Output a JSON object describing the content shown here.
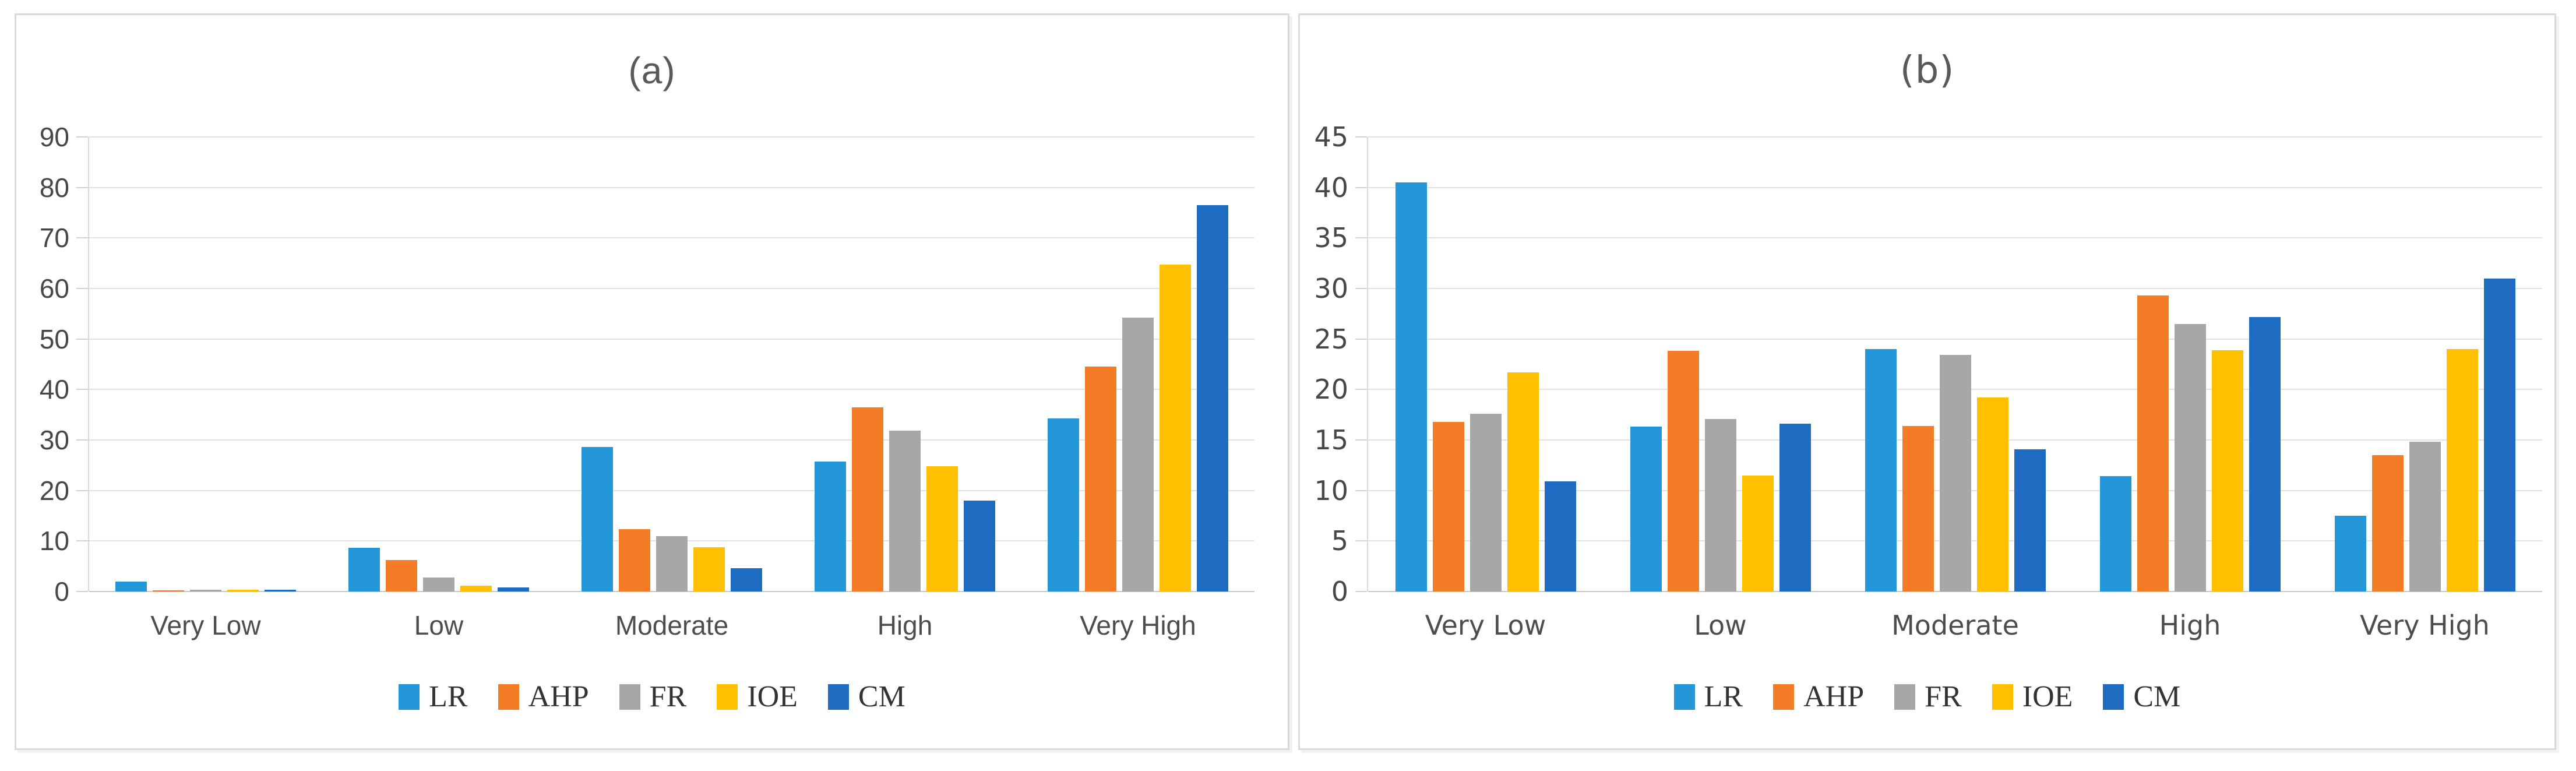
{
  "figure": {
    "panel_a_title": "(a)",
    "panel_b_title": "(b)"
  },
  "legend": {
    "items": [
      {
        "label": "LR",
        "color": "#2397d8"
      },
      {
        "label": "AHP",
        "color": "#f57c26"
      },
      {
        "label": "FR",
        "color": "#a7a7a7"
      },
      {
        "label": "IOE",
        "color": "#ffc000"
      },
      {
        "label": "CM",
        "color": "#1e6cc1"
      }
    ]
  },
  "chart_data": [
    {
      "type": "bar",
      "title": "(a)",
      "categories": [
        "Very Low",
        "Low",
        "Moderate",
        "High",
        "Very High"
      ],
      "series": [
        {
          "name": "LR",
          "color": "#2397d8",
          "values": [
            2.0,
            8.7,
            28.6,
            25.7,
            34.3
          ]
        },
        {
          "name": "AHP",
          "color": "#f57c26",
          "values": [
            0.2,
            6.2,
            12.3,
            36.5,
            44.5
          ]
        },
        {
          "name": "FR",
          "color": "#a7a7a7",
          "values": [
            0.3,
            2.8,
            11.0,
            31.9,
            54.2
          ]
        },
        {
          "name": "IOE",
          "color": "#ffc000",
          "values": [
            0.4,
            1.2,
            8.8,
            24.8,
            64.7
          ]
        },
        {
          "name": "CM",
          "color": "#1e6cc1",
          "values": [
            0.3,
            0.8,
            4.6,
            18.0,
            76.5
          ]
        }
      ],
      "xlabel": "",
      "ylabel": "",
      "ylim": [
        0,
        90
      ],
      "ytick_step": 10,
      "yticks": [
        "0",
        "10",
        "20",
        "30",
        "40",
        "50",
        "60",
        "70",
        "80",
        "90"
      ],
      "grid": true,
      "legend_position": "bottom"
    },
    {
      "type": "bar",
      "title": "(b)",
      "categories": [
        "Very Low",
        "Low",
        "Moderate",
        "High",
        "Very High"
      ],
      "series": [
        {
          "name": "LR",
          "color": "#2397d8",
          "values": [
            40.5,
            16.3,
            24.0,
            11.4,
            7.5
          ]
        },
        {
          "name": "AHP",
          "color": "#f57c26",
          "values": [
            16.8,
            23.8,
            16.4,
            29.3,
            13.5
          ]
        },
        {
          "name": "FR",
          "color": "#a7a7a7",
          "values": [
            17.6,
            17.1,
            23.4,
            26.5,
            14.8
          ]
        },
        {
          "name": "IOE",
          "color": "#ffc000",
          "values": [
            21.7,
            11.5,
            19.2,
            23.9,
            24.0
          ]
        },
        {
          "name": "CM",
          "color": "#1e6cc1",
          "values": [
            10.9,
            16.6,
            14.1,
            27.2,
            31.0
          ]
        }
      ],
      "xlabel": "",
      "ylabel": "",
      "ylim": [
        0,
        45
      ],
      "ytick_step": 5,
      "yticks": [
        "0",
        "5",
        "10",
        "15",
        "20",
        "25",
        "30",
        "35",
        "40",
        "45"
      ],
      "grid": true,
      "legend_position": "bottom"
    }
  ]
}
